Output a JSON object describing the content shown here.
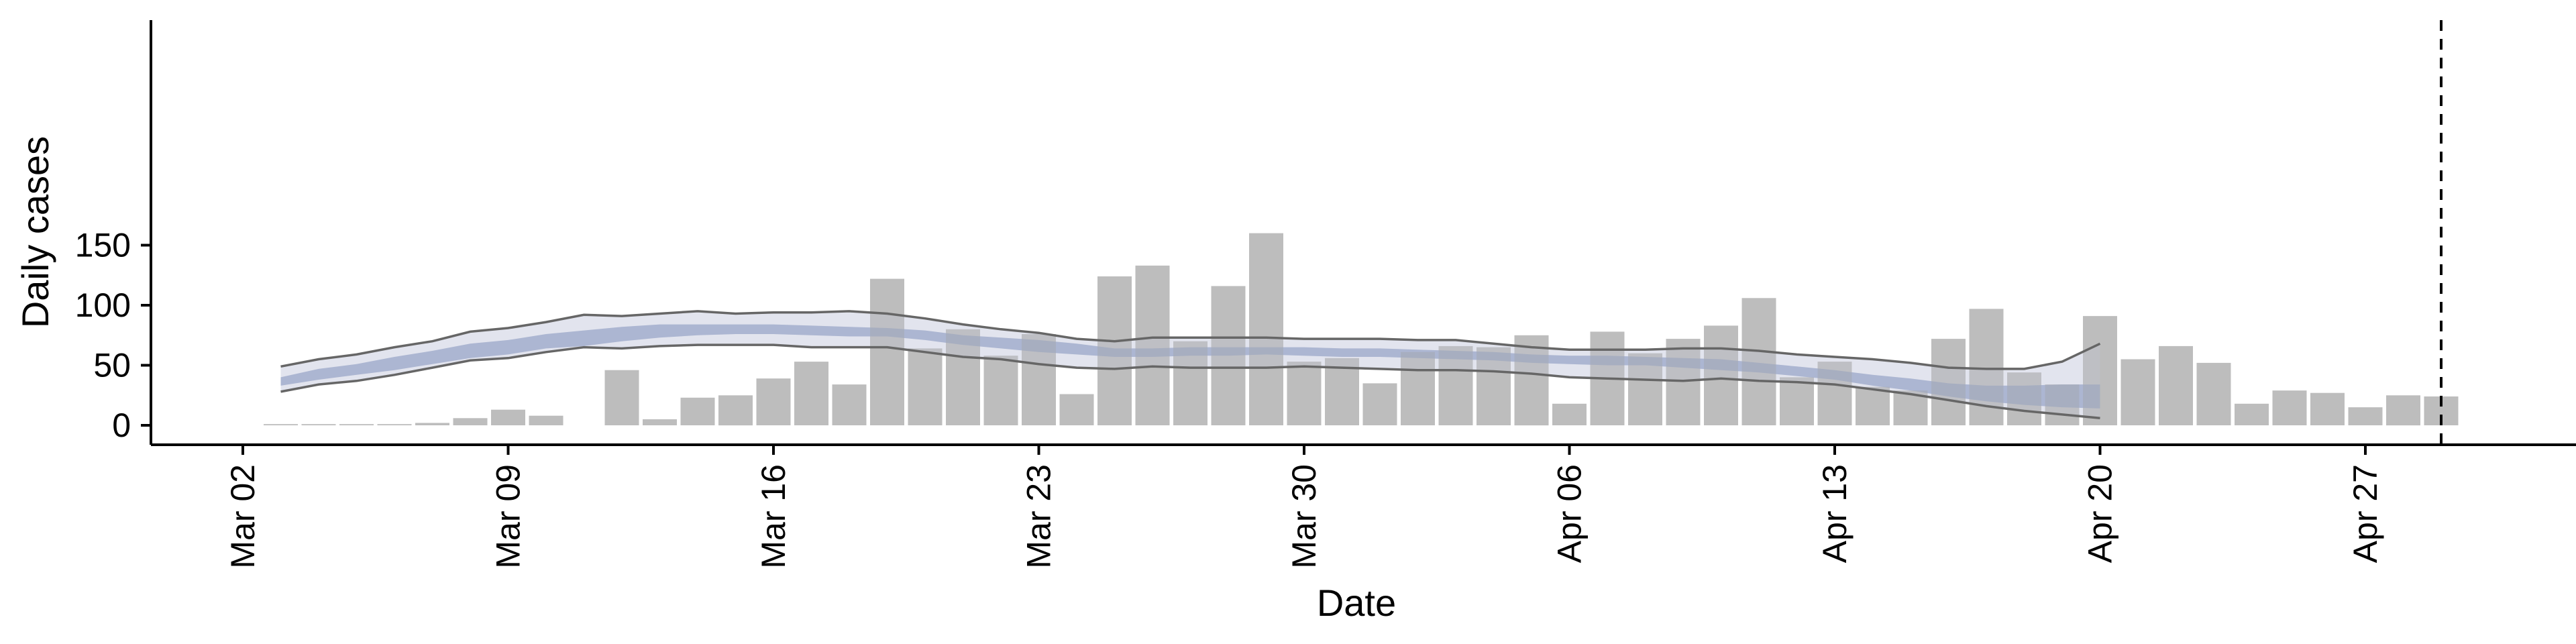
{
  "chart_data": {
    "type": "bar",
    "xlabel": "Date",
    "ylabel": "Daily cases",
    "ylim": [
      -8,
      168
    ],
    "yticks": [
      0,
      50,
      100,
      150
    ],
    "xticks": [
      {
        "date": "Mar 02",
        "label": "Mar 02"
      },
      {
        "date": "Mar 09",
        "label": "Mar 09"
      },
      {
        "date": "Mar 16",
        "label": "Mar 16"
      },
      {
        "date": "Mar 23",
        "label": "Mar 23"
      },
      {
        "date": "Mar 30",
        "label": "Mar 30"
      },
      {
        "date": "Apr 06",
        "label": "Apr 06"
      },
      {
        "date": "Apr 13",
        "label": "Apr 13"
      },
      {
        "date": "Apr 20",
        "label": "Apr 20"
      },
      {
        "date": "Apr 27",
        "label": "Apr 27"
      }
    ],
    "bars": {
      "dates": [
        "Mar 03",
        "Mar 04",
        "Mar 05",
        "Mar 06",
        "Mar 07",
        "Mar 08",
        "Mar 09",
        "Mar 10",
        "Mar 11",
        "Mar 12",
        "Mar 13",
        "Mar 14",
        "Mar 15",
        "Mar 16",
        "Mar 17",
        "Mar 18",
        "Mar 19",
        "Mar 20",
        "Mar 21",
        "Mar 22",
        "Mar 23",
        "Mar 24",
        "Mar 25",
        "Mar 26",
        "Mar 27",
        "Mar 28",
        "Mar 29",
        "Mar 30",
        "Mar 31",
        "Apr 01",
        "Apr 02",
        "Apr 03",
        "Apr 04",
        "Apr 05",
        "Apr 06",
        "Apr 07",
        "Apr 08",
        "Apr 09",
        "Apr 10",
        "Apr 11",
        "Apr 12",
        "Apr 13",
        "Apr 14",
        "Apr 15",
        "Apr 16",
        "Apr 17",
        "Apr 18",
        "Apr 19",
        "Apr 20",
        "Apr 21",
        "Apr 22",
        "Apr 23",
        "Apr 24",
        "Apr 25",
        "Apr 26",
        "Apr 27",
        "Apr 28",
        "Apr 29"
      ],
      "values": [
        1,
        1,
        1,
        1,
        2,
        6,
        13,
        8,
        0,
        46,
        5,
        23,
        25,
        39,
        53,
        34,
        122,
        64,
        80,
        58,
        76,
        26,
        124,
        133,
        70,
        116,
        160,
        53,
        56,
        35,
        61,
        66,
        65,
        75,
        18,
        78,
        60,
        72,
        83,
        106,
        40,
        53,
        32,
        29,
        72,
        97,
        44,
        34,
        91,
        55,
        66,
        52,
        18,
        29,
        27,
        15,
        25,
        24
      ],
      "color": "#bdbdbd"
    },
    "estimate": {
      "dates": [
        "Mar 03",
        "Mar 04",
        "Mar 05",
        "Mar 06",
        "Mar 07",
        "Mar 08",
        "Mar 09",
        "Mar 10",
        "Mar 11",
        "Mar 12",
        "Mar 13",
        "Mar 14",
        "Mar 15",
        "Mar 16",
        "Mar 17",
        "Mar 18",
        "Mar 19",
        "Mar 20",
        "Mar 21",
        "Mar 22",
        "Mar 23",
        "Mar 24",
        "Mar 25",
        "Mar 26",
        "Mar 27",
        "Mar 28",
        "Mar 29",
        "Mar 30",
        "Mar 31",
        "Apr 01",
        "Apr 02",
        "Apr 03",
        "Apr 04",
        "Apr 05",
        "Apr 06",
        "Apr 07",
        "Apr 08",
        "Apr 09",
        "Apr 10",
        "Apr 11",
        "Apr 12",
        "Apr 13",
        "Apr 14",
        "Apr 15",
        "Apr 16",
        "Apr 17",
        "Apr 18",
        "Apr 19",
        "Apr 20"
      ],
      "upper90": [
        49,
        55,
        59,
        65,
        70,
        78,
        81,
        86,
        92,
        91,
        93,
        95,
        93,
        94,
        94,
        95,
        93,
        89,
        84,
        80,
        77,
        72,
        70,
        73,
        73,
        73,
        73,
        72,
        72,
        72,
        71,
        71,
        68,
        65,
        63,
        63,
        63,
        64,
        64,
        62,
        59,
        57,
        55,
        52,
        48,
        47,
        47,
        53,
        68
      ],
      "lower90": [
        28,
        34,
        37,
        42,
        48,
        54,
        56,
        61,
        65,
        64,
        66,
        67,
        67,
        67,
        65,
        65,
        65,
        61,
        57,
        55,
        51,
        48,
        47,
        49,
        48,
        48,
        48,
        49,
        48,
        47,
        46,
        46,
        45,
        43,
        40,
        39,
        38,
        37,
        39,
        37,
        36,
        34,
        30,
        26,
        21,
        16,
        12,
        9,
        6
      ],
      "band50_upper": [
        40,
        47,
        51,
        57,
        62,
        68,
        71,
        76,
        79,
        82,
        84,
        84,
        84,
        84,
        83,
        82,
        81,
        79,
        75,
        73,
        71,
        68,
        64,
        64,
        65,
        65,
        65,
        65,
        64,
        64,
        63,
        62,
        61,
        59,
        58,
        58,
        57,
        56,
        55,
        52,
        49,
        46,
        42,
        39,
        35,
        33,
        33,
        34,
        34
      ],
      "band50_lower": [
        33,
        38,
        42,
        46,
        51,
        56,
        59,
        64,
        66,
        70,
        73,
        75,
        76,
        76,
        75,
        74,
        74,
        71,
        67,
        64,
        61,
        59,
        57,
        57,
        58,
        58,
        59,
        58,
        57,
        57,
        56,
        55,
        54,
        52,
        51,
        50,
        50,
        48,
        46,
        44,
        41,
        38,
        33,
        29,
        24,
        20,
        17,
        15,
        14
      ],
      "outer_color": "#c3c8dc",
      "inner_color": "#7f8fbb",
      "line_color": "#666666"
    },
    "vline": {
      "date": "Apr 29"
    }
  }
}
